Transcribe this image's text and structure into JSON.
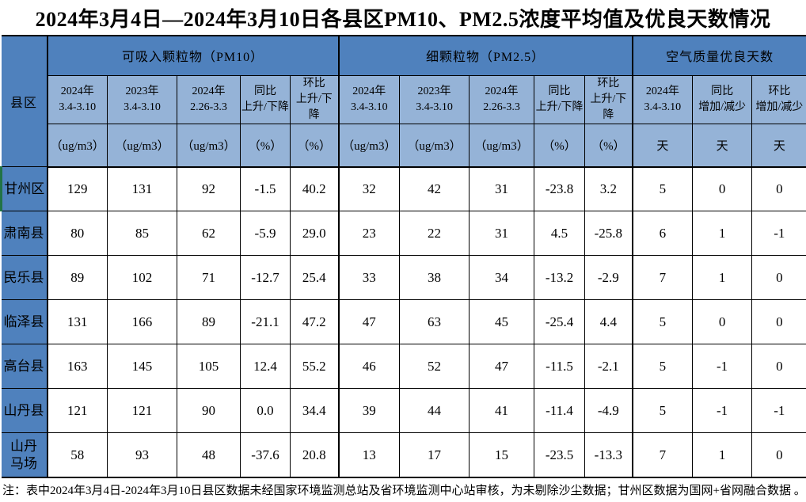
{
  "title": "2024年3月4日—2024年3月10日各县区PM10、PM2.5浓度平均值及优良天数情况",
  "colors": {
    "header_dark_blue": "#4f81bd",
    "header_light_blue": "#95b3d7",
    "selection_green": "#217346",
    "grid_line": "#000000"
  },
  "table": {
    "corner_header": "县区",
    "groups": [
      {
        "label": "可吸入颗粒物（PM10）"
      },
      {
        "label": "细颗粒物（PM2.5）"
      },
      {
        "label": "空气质量优良天数"
      }
    ],
    "subheaders": [
      "2024年\n3.4-3.10",
      "2023年\n3.4-3.10",
      "2024年\n2.26-3.3",
      "同比\n上升/下降",
      "环比\n上升/下降",
      "2024年\n3.4-3.10",
      "2023年\n3.4-3.10",
      "2024年\n2.26-3.3",
      "同比\n上升/下降",
      "环比\n上升/下降",
      "2024年\n3.4-3.10",
      "同比\n增加/减少",
      "环比\n增加/减少"
    ],
    "units": [
      "（ug/m3）",
      "（ug/m3）",
      "（ug/m3）",
      "（%）",
      "（%）",
      "（ug/m3）",
      "（ug/m3）",
      "（ug/m3）",
      "（%）",
      "（%）",
      "天",
      "天",
      "天"
    ],
    "rows": [
      {
        "name": "甘州区",
        "values": [
          "129",
          "131",
          "92",
          "-1.5",
          "40.2",
          "32",
          "42",
          "31",
          "-23.8",
          "3.2",
          "5",
          "0",
          "0"
        ]
      },
      {
        "name": "肃南县",
        "values": [
          "80",
          "85",
          "62",
          "-5.9",
          "29.0",
          "23",
          "22",
          "31",
          "4.5",
          "-25.8",
          "6",
          "1",
          "-1"
        ]
      },
      {
        "name": "民乐县",
        "values": [
          "89",
          "102",
          "71",
          "-12.7",
          "25.4",
          "33",
          "38",
          "34",
          "-13.2",
          "-2.9",
          "7",
          "1",
          "0"
        ]
      },
      {
        "name": "临泽县",
        "values": [
          "131",
          "166",
          "89",
          "-21.1",
          "47.2",
          "47",
          "63",
          "45",
          "-25.4",
          "4.4",
          "5",
          "0",
          "0"
        ]
      },
      {
        "name": "高台县",
        "values": [
          "163",
          "145",
          "105",
          "12.4",
          "55.2",
          "46",
          "52",
          "47",
          "-11.5",
          "-2.1",
          "5",
          "-1",
          "0"
        ]
      },
      {
        "name": "山丹县",
        "values": [
          "121",
          "121",
          "90",
          "0.0",
          "34.4",
          "39",
          "44",
          "41",
          "-11.4",
          "-4.9",
          "5",
          "-1",
          "-1"
        ]
      },
      {
        "name": "山丹\n马场",
        "values": [
          "58",
          "93",
          "48",
          "-37.6",
          "20.8",
          "13",
          "17",
          "15",
          "-23.5",
          "-13.3",
          "7",
          "1",
          "0"
        ]
      }
    ]
  },
  "footnote": "注：表中2024年3月4日-2024年3月10日县区数据未经国家环境监测总站及省环境监测中心站审核，为未剔除沙尘数据；甘州区数据为国网+省网融合数据 。"
}
